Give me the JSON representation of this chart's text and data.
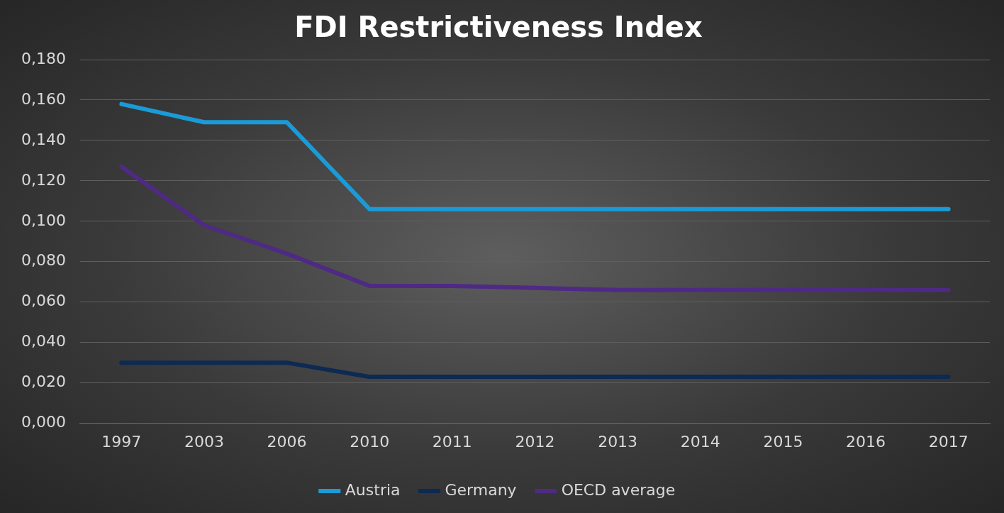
{
  "chart_data": {
    "type": "line",
    "title": "FDI Restrictiveness Index",
    "categories": [
      "1997",
      "2003",
      "2006",
      "2010",
      "2011",
      "2012",
      "2013",
      "2014",
      "2015",
      "2016",
      "2017"
    ],
    "series": [
      {
        "name": "Austria",
        "color": "#1a9bd7",
        "values": [
          0.158,
          0.149,
          0.149,
          0.106,
          0.106,
          0.106,
          0.106,
          0.106,
          0.106,
          0.106,
          0.106
        ]
      },
      {
        "name": "Germany",
        "color": "#0c2a52",
        "values": [
          0.03,
          0.03,
          0.03,
          0.023,
          0.023,
          0.023,
          0.023,
          0.023,
          0.023,
          0.023,
          0.023
        ]
      },
      {
        "name": "OECD average",
        "color": "#4e2a84",
        "values": [
          0.127,
          0.098,
          0.084,
          0.068,
          0.068,
          0.067,
          0.066,
          0.066,
          0.066,
          0.066,
          0.066
        ]
      }
    ],
    "ylim": [
      0,
      0.18
    ],
    "yticks": [
      {
        "value": 0,
        "label": "0,000"
      },
      {
        "value": 0.02,
        "label": "0,020"
      },
      {
        "value": 0.04,
        "label": "0,040"
      },
      {
        "value": 0.06,
        "label": "0,060"
      },
      {
        "value": 0.08,
        "label": "0,080"
      },
      {
        "value": 0.1,
        "label": "0,100"
      },
      {
        "value": 0.12,
        "label": "0,120"
      },
      {
        "value": 0.14,
        "label": "0,140"
      },
      {
        "value": 0.16,
        "label": "0,160"
      },
      {
        "value": 0.18,
        "label": "0,180"
      }
    ],
    "grid": "y",
    "legend": "bottom",
    "marker": "none",
    "line_style": "solid"
  }
}
